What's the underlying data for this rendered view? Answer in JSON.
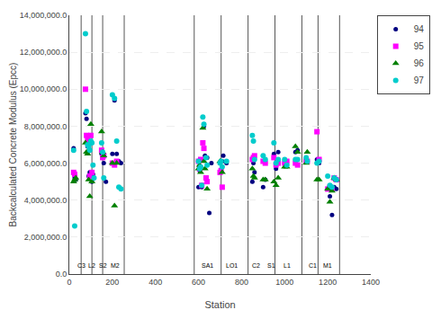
{
  "chart_data": {
    "type": "scatter",
    "xlabel": "Station",
    "ylabel": "Backcalculated Concrete Modulus (Epcc)",
    "xlim": [
      0,
      1400
    ],
    "ylim": [
      0,
      14000000
    ],
    "xticks": [
      0,
      200,
      400,
      600,
      800,
      1000,
      1200,
      1400
    ],
    "yticks": [
      {
        "value": 0,
        "label": "0.0"
      },
      {
        "value": 2000000,
        "label": "2,000,000.0"
      },
      {
        "value": 4000000,
        "label": "4,000,000.0"
      },
      {
        "value": 6000000,
        "label": "6,000,000.0"
      },
      {
        "value": 8000000,
        "label": "8,000,000.0"
      },
      {
        "value": 10000000,
        "label": "10,000,000.0"
      },
      {
        "value": 12000000,
        "label": "12,000,000.0"
      },
      {
        "value": 14000000,
        "label": "14,000,000.0"
      }
    ],
    "grid": "y",
    "legend": "right",
    "vlines": [
      55,
      105,
      155,
      255,
      580,
      705,
      830,
      955,
      1080,
      1155,
      1255
    ],
    "annotations": [
      {
        "text": "C3",
        "x": 30,
        "y": 200000
      },
      {
        "text": "L2",
        "x": 80,
        "y": 200000
      },
      {
        "text": "S2",
        "x": 130,
        "y": 200000
      },
      {
        "text": "M2",
        "x": 185,
        "y": 200000
      },
      {
        "text": "SA1",
        "x": 605,
        "y": 200000
      },
      {
        "text": "LO1",
        "x": 720,
        "y": 200000
      },
      {
        "text": "C2",
        "x": 840,
        "y": 200000
      },
      {
        "text": "S1",
        "x": 910,
        "y": 200000
      },
      {
        "text": "L1",
        "x": 985,
        "y": 200000
      },
      {
        "text": "C1",
        "x": 1105,
        "y": 200000
      },
      {
        "text": "M1",
        "x": 1170,
        "y": 200000
      }
    ],
    "series": [
      {
        "name": "94",
        "color": "#000080",
        "marker": "point",
        "x": [
          20,
          25,
          30,
          75,
          80,
          85,
          90,
          95,
          100,
          105,
          110,
          150,
          160,
          170,
          200,
          210,
          220,
          230,
          240,
          600,
          605,
          610,
          615,
          625,
          630,
          640,
          650,
          660,
          700,
          710,
          715,
          730,
          850,
          855,
          860,
          900,
          910,
          950,
          960,
          970,
          1000,
          1010,
          1050,
          1060,
          1100,
          1105,
          1150,
          1160,
          1200,
          1210,
          1220,
          1230,
          1240
        ],
        "values": [
          6800000,
          5200000,
          5100000,
          8700000,
          8400000,
          6900000,
          5300000,
          5500000,
          7100000,
          5000000,
          5400000,
          6500000,
          6000000,
          5000000,
          6500000,
          9400000,
          6500000,
          6100000,
          6000000,
          4700000,
          5600000,
          5800000,
          4700000,
          8000000,
          6400000,
          6300000,
          3300000,
          6000000,
          6000000,
          6100000,
          6400000,
          6000000,
          5000000,
          6000000,
          5500000,
          4700000,
          5100000,
          6500000,
          5700000,
          6600000,
          6000000,
          5900000,
          6600000,
          6700000,
          6200000,
          6100000,
          6200000,
          6000000,
          4600000,
          4200000,
          3200000,
          4700000,
          4600000
        ]
      },
      {
        "name": "95",
        "color": "#FF00FF",
        "marker": "square",
        "x": [
          20,
          25,
          75,
          80,
          85,
          90,
          95,
          100,
          105,
          150,
          155,
          160,
          200,
          210,
          220,
          600,
          605,
          610,
          615,
          620,
          625,
          635,
          640,
          700,
          705,
          710,
          850,
          855,
          860,
          900,
          910,
          950,
          960,
          970,
          1000,
          1010,
          1050,
          1060,
          1100,
          1105,
          1150,
          1160,
          1200,
          1210,
          1220,
          1230,
          1240
        ],
        "values": [
          5500000,
          5400000,
          10000000,
          7500000,
          7300000,
          7100000,
          5300000,
          7500000,
          5500000,
          6700000,
          6300000,
          6400000,
          6000000,
          5900000,
          6100000,
          6100000,
          5700000,
          6200000,
          4800000,
          7100000,
          6800000,
          5200000,
          5000000,
          5500000,
          5600000,
          4700000,
          6200000,
          6300000,
          6400000,
          6100000,
          6000000,
          6300000,
          5900000,
          6000000,
          6000000,
          6100000,
          6000000,
          5900000,
          6100000,
          6100000,
          7700000,
          6200000,
          4600000,
          4700000,
          4600000,
          5200000,
          5100000
        ]
      },
      {
        "name": "96",
        "color": "#008000",
        "marker": "triangle-up",
        "x": [
          20,
          25,
          30,
          75,
          80,
          85,
          90,
          95,
          100,
          105,
          150,
          155,
          160,
          200,
          210,
          220,
          600,
          605,
          610,
          620,
          625,
          630,
          640,
          700,
          710,
          850,
          855,
          860,
          900,
          910,
          950,
          960,
          970,
          1000,
          1010,
          1050,
          1060,
          1100,
          1105,
          1150,
          1160,
          1200,
          1210,
          1220,
          1230,
          1240
        ],
        "values": [
          5000000,
          5100000,
          5200000,
          7100000,
          6600000,
          6500000,
          5100000,
          4200000,
          8100000,
          5000000,
          7700000,
          6600000,
          6400000,
          6000000,
          3700000,
          6000000,
          5700000,
          5900000,
          5500000,
          7900000,
          6100000,
          5700000,
          4600000,
          6100000,
          5500000,
          5700000,
          5300000,
          5200000,
          5100000,
          5100000,
          5000000,
          4800000,
          5200000,
          5800000,
          5800000,
          6900000,
          6600000,
          6000000,
          6600000,
          5100000,
          5100000,
          4600000,
          3900000,
          4500000,
          5200000,
          5100000
        ]
      },
      {
        "name": "97",
        "color": "#00CCCC",
        "marker": "circle",
        "x": [
          20,
          25,
          75,
          80,
          85,
          90,
          95,
          100,
          105,
          110,
          115,
          150,
          155,
          160,
          200,
          210,
          220,
          230,
          240,
          600,
          605,
          610,
          615,
          620,
          625,
          635,
          640,
          700,
          705,
          710,
          730,
          850,
          855,
          860,
          900,
          910,
          950,
          960,
          970,
          1000,
          1010,
          1050,
          1060,
          1100,
          1105,
          1150,
          1160,
          1200,
          1210,
          1220,
          1230,
          1240
        ],
        "values": [
          6700000,
          2600000,
          13000000,
          8800000,
          7000000,
          6900000,
          6700000,
          7200000,
          7100000,
          5900000,
          5200000,
          7100000,
          6600000,
          5200000,
          9700000,
          9500000,
          7200000,
          4700000,
          4600000,
          6100000,
          5700000,
          5800000,
          4800000,
          8500000,
          8100000,
          6300000,
          5900000,
          6000000,
          6100000,
          5800000,
          6100000,
          7500000,
          7200000,
          6200000,
          6400000,
          6200000,
          7100000,
          6000000,
          6200000,
          6200000,
          5900000,
          6200000,
          6200000,
          6300000,
          6100000,
          6000000,
          6100000,
          5300000,
          4800000,
          4700000,
          5200000,
          5100000
        ]
      }
    ]
  }
}
